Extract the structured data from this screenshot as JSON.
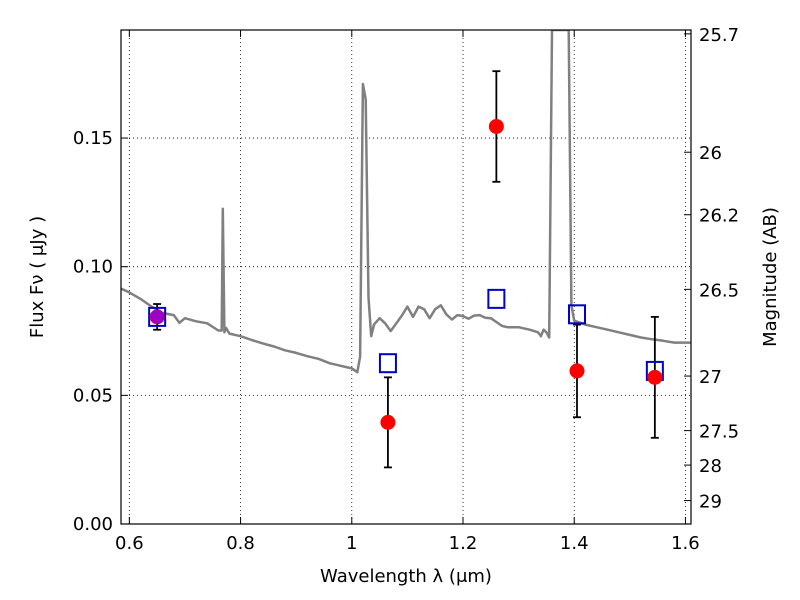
{
  "chart_data": {
    "type": "scatter",
    "xlabel": "Wavelength  λ (μm)",
    "ylabel": "Flux  Fν  ( μJy )",
    "y2label": "Magnitude (AB)",
    "xlim": [
      0.585,
      1.61
    ],
    "ylim": [
      0.0,
      0.192
    ],
    "grid": true,
    "x_ticks": [
      0.6,
      0.8,
      1.0,
      1.2,
      1.4,
      1.6
    ],
    "x_tick_labels": [
      "0.6",
      "0.8",
      "1",
      "1.2",
      "1.4",
      "1.6"
    ],
    "y_ticks": [
      0.0,
      0.05,
      0.1,
      0.15
    ],
    "y_tick_labels": [
      "0.00",
      "0.05",
      "0.10",
      "0.15"
    ],
    "y2_ticks": [
      {
        "label": "25.7",
        "flux": 0.1905
      },
      {
        "label": "26",
        "flux": 0.1445
      },
      {
        "label": "26.2",
        "flux": 0.1202
      },
      {
        "label": "26.5",
        "flux": 0.0912
      },
      {
        "label": "27",
        "flux": 0.0575
      },
      {
        "label": "27.5",
        "flux": 0.0363
      },
      {
        "label": "28",
        "flux": 0.0229
      },
      {
        "label": "29",
        "flux": 0.0091
      }
    ],
    "colors": {
      "model": "#808080",
      "observed": "#ff0000",
      "model_photometry": "#0000cc",
      "extra_point": "#9b00c8",
      "errorbar": "#000000"
    },
    "model_spectrum": {
      "x": [
        0.585,
        0.6,
        0.62,
        0.64,
        0.66,
        0.68,
        0.69,
        0.7,
        0.72,
        0.74,
        0.76,
        0.766,
        0.768,
        0.771,
        0.774,
        0.78,
        0.8,
        0.82,
        0.84,
        0.86,
        0.88,
        0.9,
        0.92,
        0.94,
        0.96,
        0.98,
        0.99,
        1.0,
        1.01,
        1.015,
        1.02,
        1.025,
        1.03,
        1.035,
        1.04,
        1.05,
        1.06,
        1.07,
        1.08,
        1.09,
        1.1,
        1.11,
        1.12,
        1.13,
        1.14,
        1.15,
        1.16,
        1.17,
        1.18,
        1.19,
        1.2,
        1.21,
        1.22,
        1.23,
        1.24,
        1.25,
        1.26,
        1.27,
        1.28,
        1.3,
        1.32,
        1.335,
        1.34,
        1.345,
        1.35,
        1.355,
        1.36,
        1.365,
        1.38,
        1.39,
        1.395,
        1.4,
        1.42,
        1.44,
        1.46,
        1.48,
        1.5,
        1.52,
        1.54,
        1.56,
        1.58,
        1.6,
        1.61
      ],
      "y": [
        0.0915,
        0.09,
        0.0875,
        0.0845,
        0.082,
        0.0812,
        0.0782,
        0.08,
        0.0788,
        0.078,
        0.0752,
        0.0752,
        0.1225,
        0.0745,
        0.0762,
        0.074,
        0.073,
        0.0715,
        0.0702,
        0.069,
        0.0675,
        0.0665,
        0.0652,
        0.0642,
        0.0625,
        0.0615,
        0.061,
        0.0605,
        0.059,
        0.065,
        0.171,
        0.165,
        0.088,
        0.073,
        0.0775,
        0.08,
        0.078,
        0.075,
        0.078,
        0.081,
        0.0845,
        0.0805,
        0.0845,
        0.0835,
        0.08,
        0.0835,
        0.085,
        0.0815,
        0.0795,
        0.0812,
        0.0808,
        0.0798,
        0.081,
        0.0812,
        0.0802,
        0.08,
        0.0785,
        0.077,
        0.0765,
        0.0765,
        0.0755,
        0.0745,
        0.073,
        0.0755,
        0.0745,
        0.0725,
        0.192,
        0.192,
        0.192,
        0.192,
        0.085,
        0.079,
        0.0775,
        0.0765,
        0.0755,
        0.0745,
        0.0735,
        0.0725,
        0.0718,
        0.0712,
        0.0705,
        0.0705,
        0.0705
      ]
    },
    "observed_points": [
      {
        "x": 0.65,
        "y": 0.0805,
        "err": 0.005
      },
      {
        "x": 1.065,
        "y": 0.0395,
        "err": 0.0175
      },
      {
        "x": 1.26,
        "y": 0.1545,
        "err": 0.0215
      },
      {
        "x": 1.405,
        "y": 0.0595,
        "err": 0.018
      },
      {
        "x": 1.545,
        "y": 0.057,
        "err": 0.0235
      }
    ],
    "model_photometry": [
      {
        "x": 0.65,
        "y": 0.0805
      },
      {
        "x": 1.065,
        "y": 0.0625
      },
      {
        "x": 1.26,
        "y": 0.0875
      },
      {
        "x": 1.405,
        "y": 0.0815
      },
      {
        "x": 1.545,
        "y": 0.0595
      }
    ],
    "extra_points": [
      {
        "x": 0.65,
        "y": 0.0805
      }
    ]
  }
}
